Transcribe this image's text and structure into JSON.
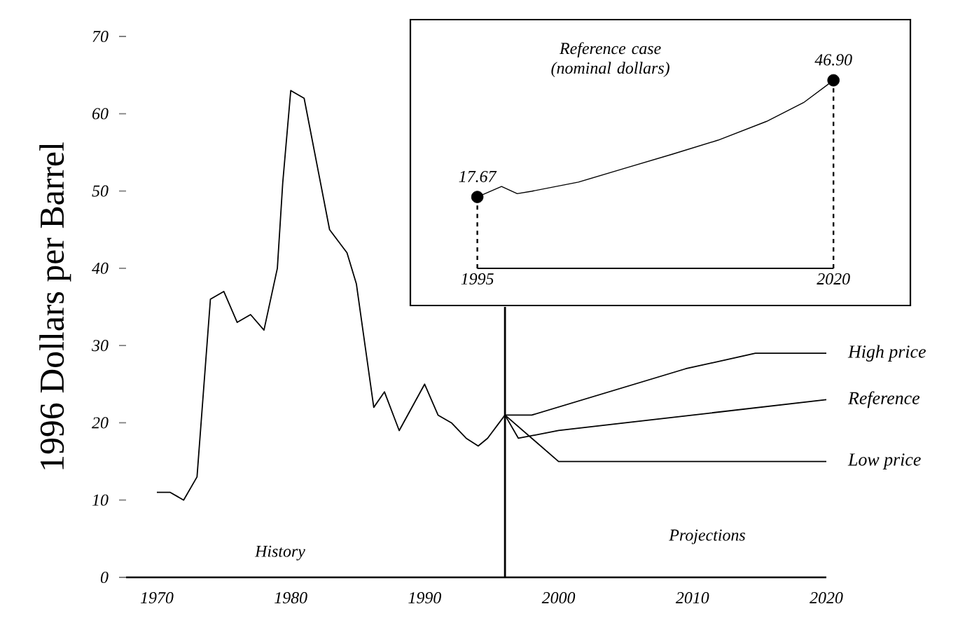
{
  "chart_data": [
    {
      "type": "line",
      "ylabel": "1996 Dollars per Barrel",
      "xlim": [
        1967.7,
        2020
      ],
      "ylim": [
        0,
        70
      ],
      "xticks": [
        1970,
        1980,
        1990,
        2000,
        2010,
        2020
      ],
      "yticks": [
        0,
        10,
        20,
        30,
        40,
        50,
        60,
        70
      ],
      "legend": false,
      "annotations": [
        "History",
        "Projections"
      ],
      "ref_lines": [
        {
          "axis": "x",
          "value": 1996,
          "color": "#000000"
        }
      ],
      "series": [
        {
          "color": "#000000",
          "x": [
            1970,
            1971,
            1972,
            1973,
            1974,
            1975,
            1976,
            1977,
            1978,
            1979,
            1979.4,
            1980,
            1981,
            1982.9,
            1984.2,
            1984.9,
            1986.2,
            1987,
            1988.1,
            1990,
            1991,
            1992,
            1993.1,
            1994,
            1994.7,
            1996
          ],
          "values": [
            11,
            11,
            10,
            13,
            36,
            37,
            33,
            34,
            32,
            40,
            51,
            63,
            62,
            45,
            42,
            38,
            22,
            24,
            19,
            25,
            21,
            20,
            18,
            17,
            18,
            21
          ]
        },
        {
          "name": "High price",
          "color": "#000000",
          "x": [
            1996,
            1998,
            2009.5,
            2014.7,
            2020
          ],
          "values": [
            21,
            21,
            27,
            29,
            29
          ]
        },
        {
          "name": "Reference",
          "color": "#000000",
          "x": [
            1996,
            1997,
            2000,
            2005,
            2020
          ],
          "values": [
            21,
            18,
            19,
            20,
            23
          ]
        },
        {
          "name": "Low price",
          "color": "#000000",
          "x": [
            1996,
            2000,
            2008.5,
            2020
          ],
          "values": [
            21,
            15,
            15,
            15
          ]
        }
      ]
    },
    {
      "type": "line",
      "title": "Reference case (nominal dollars)",
      "xlim": [
        1990.3,
        2025.4
      ],
      "xticks": [
        1995,
        2020
      ],
      "tick_labels": "x",
      "series": [
        {
          "color": "#000000",
          "x": [
            1995,
            1996.7,
            1997.8,
            1998.8,
            2002.1,
            2005.4,
            2008.7,
            2011.9,
            2015.3,
            2017.9,
            2020
          ],
          "values": [
            17.67,
            20.3,
            18.5,
            19.1,
            21.4,
            24.9,
            28.4,
            31.9,
            36.6,
            41.3,
            46.9
          ]
        },
        {
          "type": "lollipop",
          "line_style": "dashed",
          "color": "#000000",
          "x": [
            1995,
            2020
          ],
          "values": [
            17.67,
            46.9
          ],
          "value_labels": [
            "17.67",
            "46.90"
          ]
        }
      ]
    }
  ]
}
